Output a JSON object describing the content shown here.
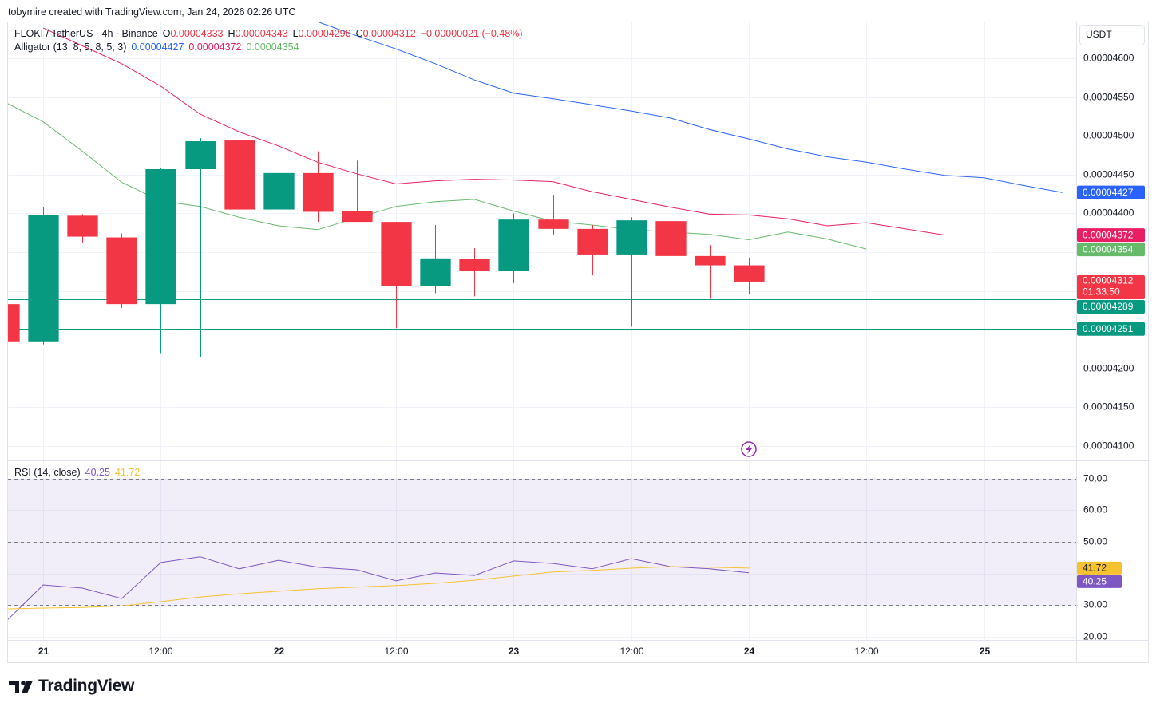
{
  "header": {
    "attribution": "tobymire created with TradingView.com, Jan 24, 2026 02:26 UTC"
  },
  "footer": {
    "brand": "TradingView"
  },
  "chart_data": [
    {
      "type": "candlestick",
      "symbol": "FLOKI / TetherUS · 4h · Binance",
      "ohlc_legend": [
        {
          "label": "O",
          "value": "0.00004333"
        },
        {
          "label": "H",
          "value": "0.00004343"
        },
        {
          "label": "L",
          "value": "0.00004296"
        },
        {
          "label": "C",
          "value": "0.00004312"
        }
      ],
      "change": "−0.00000021 (−0.48%)",
      "currency": "USDT",
      "up_color": "#089981",
      "down_color": "#f23645",
      "x": [
        0,
        1,
        2,
        3,
        4,
        5,
        6,
        7,
        8,
        9,
        10,
        11,
        12,
        13,
        14,
        15,
        16,
        17,
        18,
        19
      ],
      "open": [
        4.283e-05,
        4.235e-05,
        4.397e-05,
        4.369e-05,
        4.283e-05,
        4.457e-05,
        4.494e-05,
        4.405e-05,
        4.452e-05,
        4.403e-05,
        4.389e-05,
        4.306e-05,
        4.341e-05,
        4.326e-05,
        4.392e-05,
        4.38e-05,
        4.347e-05,
        4.39e-05,
        4.345e-05,
        4.333e-05
      ],
      "high": [
        4.283e-05,
        4.408e-05,
        4.399e-05,
        4.374e-05,
        4.459e-05,
        4.497e-05,
        4.535e-05,
        4.508e-05,
        4.48e-05,
        4.468e-05,
        4.389e-05,
        4.385e-05,
        4.355e-05,
        4.4e-05,
        4.424e-05,
        4.385e-05,
        4.395e-05,
        4.498e-05,
        4.359e-05,
        4.343e-05
      ],
      "low": [
        4.235e-05,
        4.231e-05,
        4.362e-05,
        4.278e-05,
        4.22e-05,
        4.215e-05,
        4.386e-05,
        4.405e-05,
        4.389e-05,
        4.389e-05,
        4.252e-05,
        4.297e-05,
        4.293e-05,
        4.31e-05,
        4.372e-05,
        4.32e-05,
        4.254e-05,
        4.329e-05,
        4.29e-05,
        4.296e-05
      ],
      "close": [
        4.235e-05,
        4.398e-05,
        4.37e-05,
        4.283e-05,
        4.457e-05,
        4.493e-05,
        4.405e-05,
        4.452e-05,
        4.402e-05,
        4.389e-05,
        4.306e-05,
        4.342e-05,
        4.326e-05,
        4.392e-05,
        4.38e-05,
        4.347e-05,
        4.391e-05,
        4.345e-05,
        4.333e-05,
        4.312e-05
      ],
      "indicator": {
        "name": "Alligator (13, 8, 5, 8, 5, 3)",
        "x": [
          0,
          1,
          2,
          3,
          4,
          5,
          6,
          7,
          8,
          9,
          10,
          11,
          12,
          13,
          14,
          15,
          16,
          17,
          18,
          19,
          20,
          21,
          22,
          23,
          24,
          25,
          26,
          27
        ],
        "series": [
          {
            "color": "#2962ff",
            "label": "0.00004427",
            "values": [
              null,
              null,
              null,
              null,
              null,
              null,
              null,
              null,
              4.647e-05,
              4.629e-05,
              4.612e-05,
              4.593e-05,
              4.572e-05,
              4.555e-05,
              4.548e-05,
              4.54e-05,
              4.532e-05,
              4.523e-05,
              4.508e-05,
              4.496e-05,
              4.483e-05,
              4.473e-05,
              4.466e-05,
              4.457e-05,
              4.449e-05,
              4.446e-05,
              4.436e-05,
              4.427e-05
            ]
          },
          {
            "color": "#e91e63",
            "label": "0.00004372",
            "values": [
              null,
              4.639e-05,
              4.616e-05,
              4.593e-05,
              4.564e-05,
              4.528e-05,
              4.505e-05,
              4.487e-05,
              4.466e-05,
              4.451e-05,
              4.438e-05,
              4.442e-05,
              4.444e-05,
              4.443e-05,
              4.441e-05,
              4.428e-05,
              4.418e-05,
              4.408e-05,
              4.399e-05,
              4.398e-05,
              4.393e-05,
              4.384e-05,
              4.388e-05,
              4.38e-05,
              4.372e-05,
              null,
              null,
              null
            ]
          },
          {
            "color": "#66bb6a",
            "label": "0.00004354",
            "values": [
              4.544e-05,
              4.518e-05,
              4.48e-05,
              4.44e-05,
              4.416e-05,
              4.409e-05,
              4.395e-05,
              4.384e-05,
              4.379e-05,
              4.394e-05,
              4.409e-05,
              4.415e-05,
              4.418e-05,
              4.403e-05,
              4.39e-05,
              4.385e-05,
              4.379e-05,
              4.376e-05,
              4.373e-05,
              4.366e-05,
              4.376e-05,
              4.367e-05,
              4.354e-05,
              null,
              null,
              null,
              null,
              null
            ]
          }
        ]
      },
      "last_price": {
        "value": 4.312e-05,
        "label": "0.00004312",
        "countdown": "01:33:50"
      },
      "levels": [
        {
          "value": 4.289e-05,
          "label": "0.00004289",
          "color": "#089981"
        },
        {
          "value": 4.251e-05,
          "label": "0.00004251",
          "color": "#089981"
        }
      ],
      "xlim": [
        0.1,
        27.35
      ],
      "xticks": [
        {
          "value": 1,
          "label": "21"
        },
        {
          "value": 4,
          "label": "12:00"
        },
        {
          "value": 7,
          "label": "22"
        },
        {
          "value": 10,
          "label": "12:00"
        },
        {
          "value": 13,
          "label": "23"
        },
        {
          "value": 16,
          "label": "12:00"
        },
        {
          "value": 19,
          "label": "24"
        },
        {
          "value": 22,
          "label": "12:00"
        },
        {
          "value": 25,
          "label": "25"
        }
      ],
      "ylim": [
        4.0815e-05,
        4.6463e-05
      ],
      "yticks": [
        {
          "value": 4.1e-05,
          "label": "0.00004100"
        },
        {
          "value": 4.15e-05,
          "label": "0.00004150"
        },
        {
          "value": 4.2e-05,
          "label": "0.00004200"
        },
        {
          "value": 4.25e-05,
          "label": "0.00004250"
        },
        {
          "value": 4.3e-05,
          "label": "0.00004300"
        },
        {
          "value": 4.35e-05,
          "label": "0.00004350"
        },
        {
          "value": 4.4e-05,
          "label": "0.00004400"
        },
        {
          "value": 4.45e-05,
          "label": "0.00004450"
        },
        {
          "value": 4.5e-05,
          "label": "0.00004500"
        },
        {
          "value": 4.55e-05,
          "label": "0.00004550"
        },
        {
          "value": 4.6e-05,
          "label": "0.00004600"
        }
      ],
      "grid": true
    },
    {
      "type": "line",
      "name": "RSI (14, close)",
      "x": [
        0,
        1,
        2,
        3,
        4,
        5,
        6,
        7,
        8,
        9,
        10,
        11,
        12,
        13,
        14,
        15,
        16,
        17,
        18,
        19
      ],
      "series": [
        {
          "color": "#7e57c2",
          "label": "40.25",
          "values": [
            24.3,
            36.4,
            35.4,
            32.1,
            43.5,
            45.3,
            41.5,
            44.2,
            42.0,
            41.2,
            37.7,
            40.2,
            39.4,
            44.0,
            43.2,
            41.5,
            44.7,
            42.2,
            41.5,
            40.25
          ]
        },
        {
          "color": "#f7c22f",
          "label": "41.72",
          "values": [
            28.8,
            29.1,
            29.3,
            29.8,
            31.1,
            32.6,
            33.6,
            34.4,
            35.2,
            35.7,
            36.2,
            36.9,
            37.9,
            39.2,
            40.5,
            41.0,
            41.7,
            42.2,
            42.0,
            41.72
          ]
        }
      ],
      "band": [
        30,
        70
      ],
      "middle": 50,
      "ylim": [
        19,
        75.5
      ],
      "yticks": [
        {
          "value": 20,
          "label": "20.00"
        },
        {
          "value": 30,
          "label": "30.00"
        },
        {
          "value": 40,
          "label": "40.00"
        },
        {
          "value": 50,
          "label": "50.00"
        },
        {
          "value": 60,
          "label": "60.00"
        },
        {
          "value": 70,
          "label": "70.00"
        }
      ]
    }
  ]
}
